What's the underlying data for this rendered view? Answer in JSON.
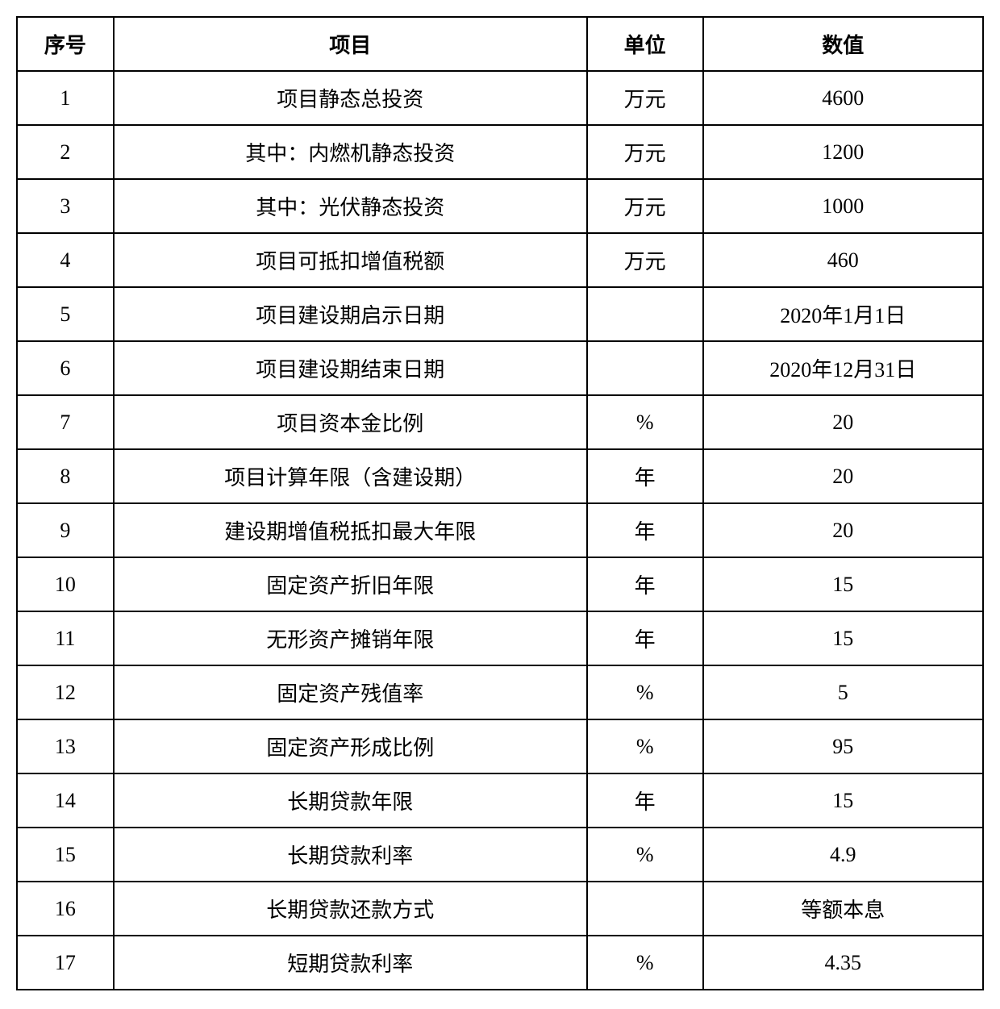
{
  "table": {
    "columns": [
      "序号",
      "项目",
      "单位",
      "数值"
    ],
    "rows": [
      [
        "1",
        "项目静态总投资",
        "万元",
        "4600"
      ],
      [
        "2",
        "其中：内燃机静态投资",
        "万元",
        "1200"
      ],
      [
        "3",
        "其中：光伏静态投资",
        "万元",
        "1000"
      ],
      [
        "4",
        "项目可抵扣增值税额",
        "万元",
        "460"
      ],
      [
        "5",
        "项目建设期启示日期",
        "",
        "2020年1月1日"
      ],
      [
        "6",
        "项目建设期结束日期",
        "",
        "2020年12月31日"
      ],
      [
        "7",
        "项目资本金比例",
        "%",
        "20"
      ],
      [
        "8",
        "项目计算年限（含建设期）",
        "年",
        "20"
      ],
      [
        "9",
        "建设期增值税抵扣最大年限",
        "年",
        "20"
      ],
      [
        "10",
        "固定资产折旧年限",
        "年",
        "15"
      ],
      [
        "11",
        "无形资产摊销年限",
        "年",
        "15"
      ],
      [
        "12",
        "固定资产残值率",
        "%",
        "5"
      ],
      [
        "13",
        "固定资产形成比例",
        "%",
        "95"
      ],
      [
        "14",
        "长期贷款年限",
        "年",
        "15"
      ],
      [
        "15",
        "长期贷款利率",
        "%",
        "4.9"
      ],
      [
        "16",
        "长期贷款还款方式",
        "",
        "等额本息"
      ],
      [
        "17",
        "短期贷款利率",
        "%",
        "4.35"
      ]
    ],
    "border_color": "#000000",
    "background_color": "#ffffff",
    "font_size_pt": 20,
    "header_font_weight": "bold"
  }
}
